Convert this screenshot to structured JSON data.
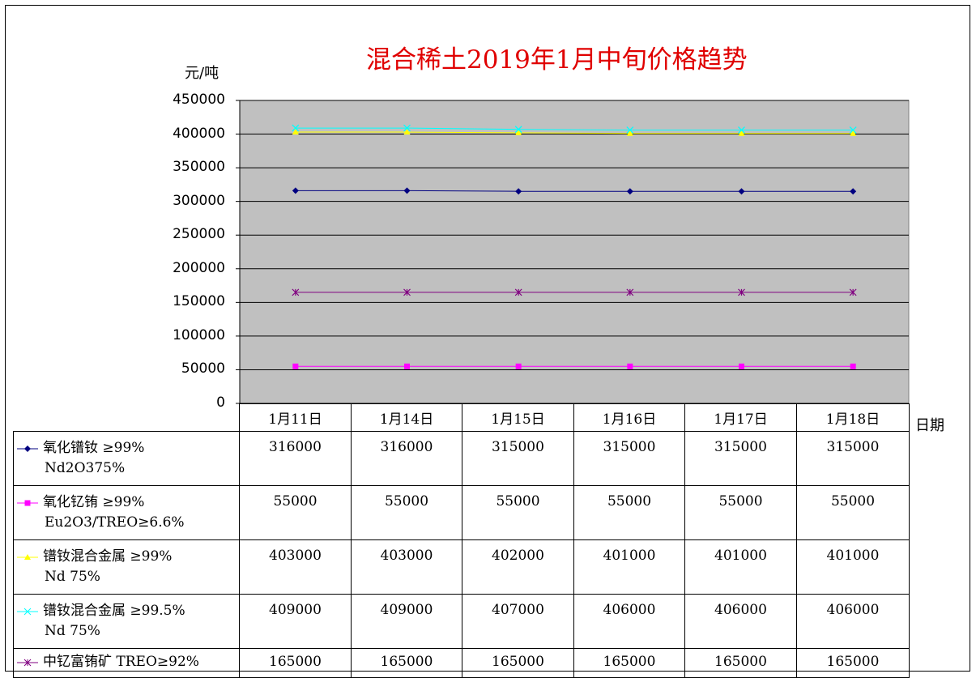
{
  "title": "混合稀土2019年1月中旬价格趋势",
  "y_unit": "元/吨",
  "x_unit": "日期",
  "chart_data": {
    "type": "line",
    "title": "混合稀土2019年1月中旬价格趋势",
    "xlabel": "日期",
    "ylabel": "元/吨",
    "categories": [
      "1月11日",
      "1月14日",
      "1月15日",
      "1月16日",
      "1月17日",
      "1月18日"
    ],
    "ylim": [
      0,
      450000
    ],
    "yticks": [
      "450000",
      "400000",
      "350000",
      "300000",
      "250000",
      "200000",
      "150000",
      "100000",
      "50000",
      "0"
    ],
    "ytick_values": [
      450000,
      400000,
      350000,
      300000,
      250000,
      200000,
      150000,
      100000,
      50000,
      0
    ],
    "plot_background": "#c0c0c0",
    "grid": true,
    "legend": "data-table-below",
    "series": [
      {
        "name_line1": "氧化镨钕 ≥99%",
        "name_line2": "Nd2O375%",
        "color": "#000080",
        "marker": "diamond",
        "values": [
          316000,
          316000,
          315000,
          315000,
          315000,
          315000
        ],
        "labels": [
          "316000",
          "316000",
          "315000",
          "315000",
          "315000",
          "315000"
        ]
      },
      {
        "name_line1": "氧化钇铕 ≥99%",
        "name_line2": "Eu2O3/TREO≥6.6%",
        "color": "#ff00ff",
        "marker": "square",
        "values": [
          55000,
          55000,
          55000,
          55000,
          55000,
          55000
        ],
        "labels": [
          "55000",
          "55000",
          "55000",
          "55000",
          "55000",
          "55000"
        ]
      },
      {
        "name_line1": "镨钕混合金属 ≥99%",
        "name_line2": "Nd 75%",
        "color": "#ffff00",
        "marker": "triangle",
        "values": [
          403000,
          403000,
          402000,
          401000,
          401000,
          401000
        ],
        "labels": [
          "403000",
          "403000",
          "402000",
          "401000",
          "401000",
          "401000"
        ]
      },
      {
        "name_line1": "镨钕混合金属 ≥99.5%",
        "name_line2": "Nd  75%",
        "color": "#00ffff",
        "marker": "x",
        "values": [
          409000,
          409000,
          407000,
          406000,
          406000,
          406000
        ],
        "labels": [
          "409000",
          "409000",
          "407000",
          "406000",
          "406000",
          "406000"
        ]
      },
      {
        "name_line1": "中钇富铕矿 TREO≥92%",
        "name_line2": "",
        "color": "#800080",
        "marker": "star",
        "values": [
          165000,
          165000,
          165000,
          165000,
          165000,
          165000
        ],
        "labels": [
          "165000",
          "165000",
          "165000",
          "165000",
          "165000",
          "165000"
        ]
      }
    ]
  }
}
